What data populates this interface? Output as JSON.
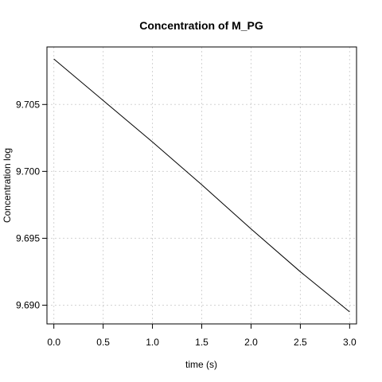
{
  "chart_data": {
    "type": "line",
    "title": "Concentration of M_PG",
    "xlabel": "time (s)",
    "ylabel": "Concentration log",
    "xlim": [
      -0.07,
      3.07
    ],
    "ylim": [
      9.6886,
      9.7093
    ],
    "xticks": [
      0.0,
      0.5,
      1.0,
      1.5,
      2.0,
      2.5,
      3.0
    ],
    "xtick_labels": [
      "0.0",
      "0.5",
      "1.0",
      "1.5",
      "2.0",
      "2.5",
      "3.0"
    ],
    "yticks": [
      9.69,
      9.695,
      9.7,
      9.705
    ],
    "ytick_labels": [
      "9.690",
      "9.695",
      "9.700",
      "9.705"
    ],
    "grid": true,
    "series": [
      {
        "color": "#000000",
        "x": [
          0.0,
          0.5,
          1.0,
          1.5,
          2.0,
          2.5,
          3.0
        ],
        "y": [
          9.7084,
          9.7053,
          9.7022,
          9.699,
          9.6957,
          9.6925,
          9.6895
        ]
      }
    ],
    "colors": {
      "line": "#000000",
      "grid": "#d3d3d3",
      "axis": "#000000"
    }
  }
}
